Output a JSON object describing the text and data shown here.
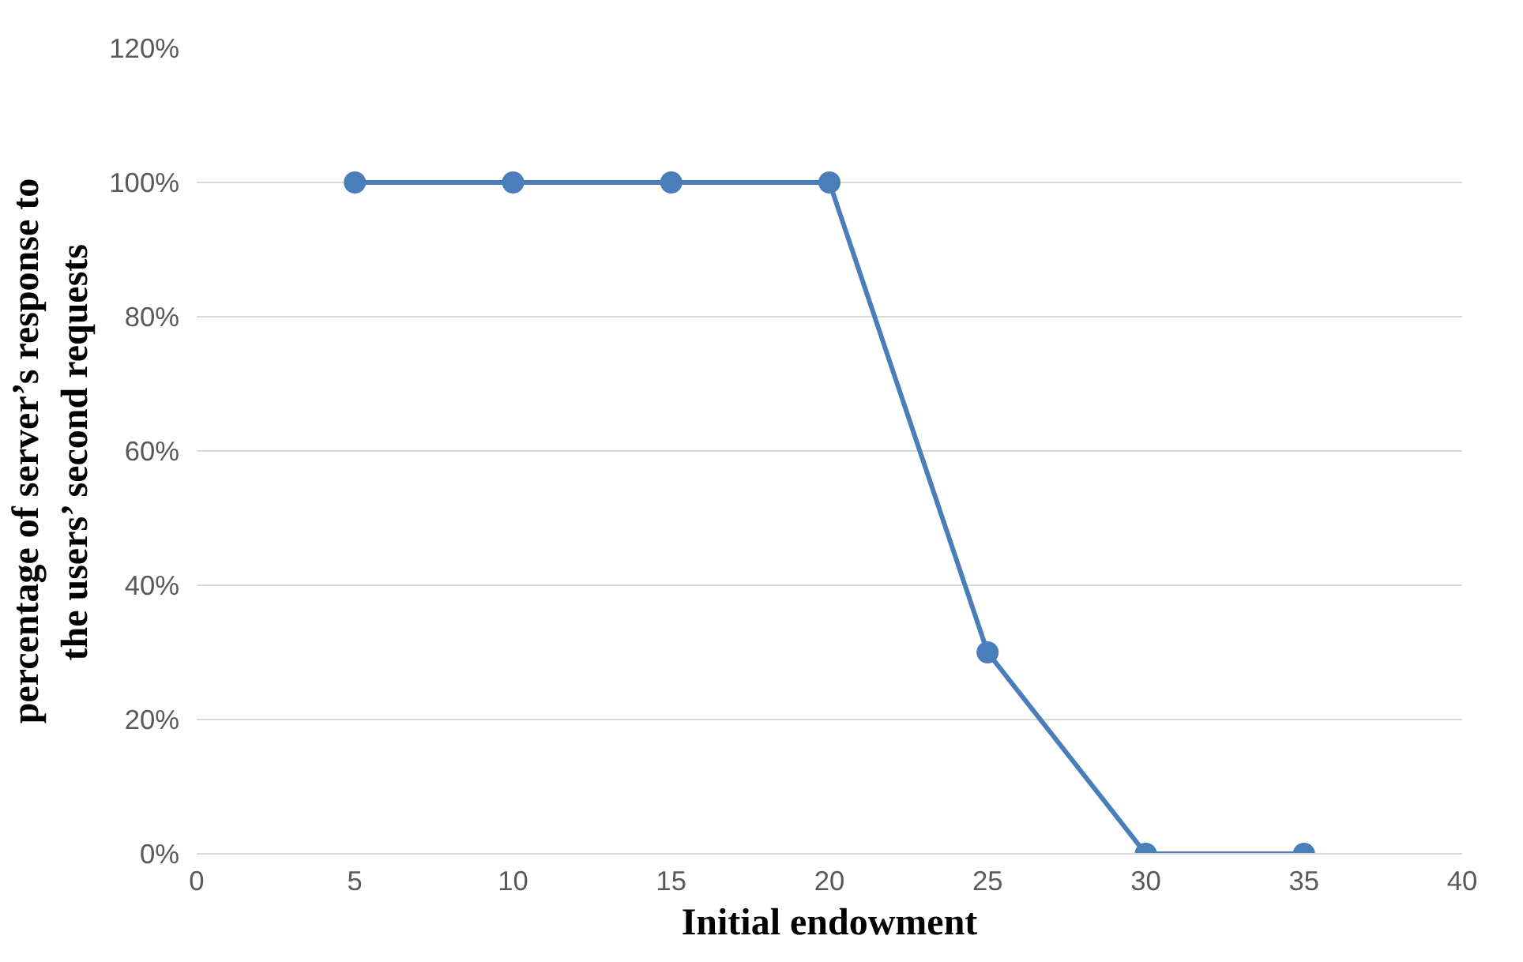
{
  "chart_data": {
    "type": "line",
    "xlabel": "Initial endowment",
    "ylabel": "percentage of server’s response to\nthe users’ second requests",
    "x": [
      5,
      10,
      15,
      20,
      25,
      30,
      35
    ],
    "series": [
      {
        "color": "#4a7ebb",
        "values": [
          100,
          100,
          100,
          100,
          30,
          0,
          0
        ]
      }
    ],
    "xlim": [
      0,
      40
    ],
    "xticks": [
      0,
      5,
      10,
      15,
      20,
      25,
      30,
      35,
      40
    ],
    "ylim": [
      0,
      120
    ],
    "yticks": [
      {
        "value": 0,
        "label": "0%"
      },
      {
        "value": 20,
        "label": "20%"
      },
      {
        "value": 40,
        "label": "40%"
      },
      {
        "value": 60,
        "label": "60%"
      },
      {
        "value": 80,
        "label": "80%"
      },
      {
        "value": 100,
        "label": "100%"
      },
      {
        "value": 120,
        "label": "120%"
      }
    ],
    "grid": "y",
    "marker": "circle",
    "line_style": "solid"
  }
}
